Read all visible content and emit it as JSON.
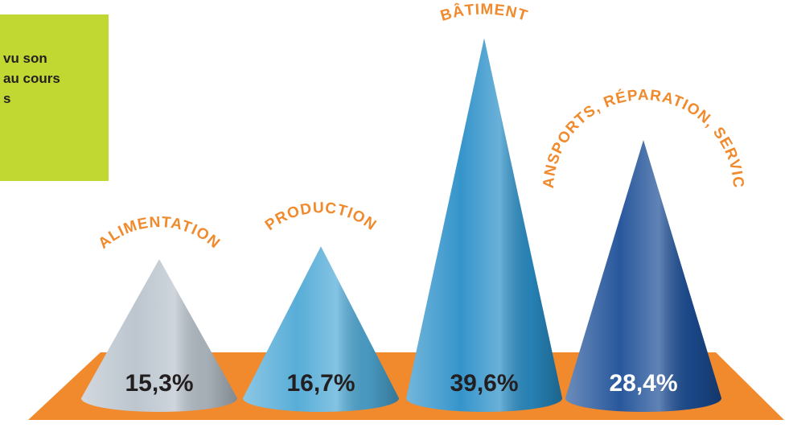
{
  "chart_data": {
    "type": "cone",
    "annotation": [
      "vu son",
      "au cours",
      "s"
    ],
    "categories": [
      "ALIMENTATION",
      "PRODUCTION",
      "BÂTIMENT",
      "TRANSPORTS, RÉPARATION, SERVICES"
    ],
    "values": [
      15.3,
      16.7,
      39.6,
      28.4
    ],
    "value_labels": [
      "15,3%",
      "16,7%",
      "39,6%",
      "28,4%"
    ],
    "colors": [
      "#b9c3cc",
      "#4fa9d6",
      "#2a8fc8",
      "#1d4f97"
    ],
    "label_colors": [
      "#231f20",
      "#231f20",
      "#231f20",
      "#ffffff"
    ],
    "category_color": "#f08a2c",
    "floor_color": "#f08a2c",
    "annotation_box_color": "#c2d832"
  }
}
